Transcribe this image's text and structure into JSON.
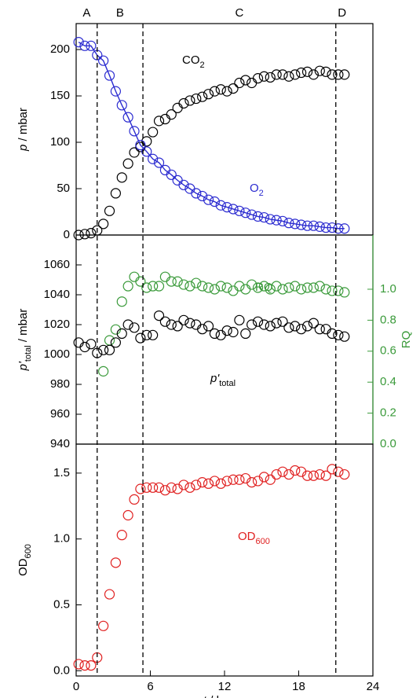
{
  "chart_data": [
    {
      "type": "scatter",
      "phases": [
        "A",
        "B",
        "C",
        "D"
      ],
      "phase_boundaries": [
        1.7,
        5.4,
        21
      ],
      "xlim": [
        0,
        24
      ],
      "ylabel": [
        {
          "text": "p",
          "italic": true
        },
        {
          "text": " / mbar"
        }
      ],
      "ylim": [
        0,
        228
      ],
      "yticks": [
        0,
        50,
        100,
        150,
        200
      ],
      "x": [
        0.2,
        0.7,
        1.2,
        1.7,
        2.2,
        2.7,
        3.2,
        3.7,
        4.2,
        4.7,
        5.2,
        5.7,
        6.2,
        6.7,
        7.2,
        7.7,
        8.2,
        8.7,
        9.2,
        9.7,
        10.2,
        10.7,
        11.2,
        11.7,
        12.2,
        12.7,
        13.2,
        13.7,
        14.2,
        14.7,
        15.2,
        15.7,
        16.2,
        16.7,
        17.2,
        17.7,
        18.2,
        18.7,
        19.2,
        19.7,
        20.2,
        20.7,
        21.2,
        21.7
      ],
      "series": [
        {
          "name": [
            {
              "text": "CO"
            },
            {
              "text": "2",
              "sub": true
            }
          ],
          "color": "#000000",
          "line": false,
          "values": [
            0,
            1,
            2,
            5,
            12,
            26,
            45,
            62,
            77,
            89,
            95,
            101,
            111,
            123,
            125,
            130,
            137,
            142,
            145,
            147,
            149,
            152,
            155,
            157,
            155,
            158,
            164,
            167,
            164,
            169,
            171,
            170,
            173,
            173,
            171,
            173,
            175,
            176,
            173,
            177,
            176,
            173,
            173,
            173
          ]
        },
        {
          "name": [
            {
              "text": "O"
            },
            {
              "text": "2",
              "sub": true
            }
          ],
          "color": "#2b2bd0",
          "line": true,
          "values": [
            208,
            204,
            204,
            194,
            188,
            172,
            155,
            140,
            127,
            112,
            97,
            90,
            82,
            78,
            70,
            65,
            59,
            54,
            50,
            45,
            42,
            38,
            36,
            32,
            30,
            28,
            26,
            24,
            22,
            20,
            19,
            17,
            16,
            15,
            13,
            12,
            11,
            10,
            10,
            9,
            8,
            8,
            7,
            7
          ]
        }
      ]
    },
    {
      "type": "scatter",
      "xlim": [
        0,
        24
      ],
      "ylabel": [
        {
          "text": "p'",
          "italic": true
        },
        {
          "text": "total",
          "sub": true
        },
        {
          "text": " / mbar"
        }
      ],
      "ylim": [
        940,
        1080
      ],
      "yticks": [
        940,
        960,
        980,
        1000,
        1020,
        1040,
        1060
      ],
      "y2label": [
        {
          "text": "RQ"
        }
      ],
      "y2color": "#3a9a3a",
      "y2lim": [
        0,
        1.35
      ],
      "y2ticks": [
        {
          "value": 0,
          "label": "0.0"
        },
        {
          "value": 0.2,
          "label": "0.2"
        },
        {
          "value": 0.4,
          "label": "0.4"
        },
        {
          "value": 0.6,
          "label": "0.6"
        },
        {
          "value": 0.8,
          "label": "0.8"
        },
        {
          "value": 1,
          "label": "1.0"
        }
      ],
      "x": [
        0.2,
        0.7,
        1.2,
        1.7,
        2.2,
        2.7,
        3.2,
        3.7,
        4.2,
        4.7,
        5.2,
        5.7,
        6.2,
        6.7,
        7.2,
        7.7,
        8.2,
        8.7,
        9.2,
        9.7,
        10.2,
        10.7,
        11.2,
        11.7,
        12.2,
        12.7,
        13.2,
        13.7,
        14.2,
        14.7,
        15.2,
        15.7,
        16.2,
        16.7,
        17.2,
        17.7,
        18.2,
        18.7,
        19.2,
        19.7,
        20.2,
        20.7,
        21.2,
        21.7
      ],
      "series": [
        {
          "name": [
            {
              "text": "RQ"
            }
          ],
          "color": "#3a9a3a",
          "axis": "y2",
          "line": false,
          "values": [
            null,
            null,
            null,
            null,
            0.47,
            0.67,
            0.74,
            0.92,
            1.02,
            1.08,
            1.05,
            1.01,
            1.02,
            1.02,
            1.08,
            1.05,
            1.05,
            1.03,
            1.02,
            1.04,
            1.02,
            1.01,
            1.0,
            1.02,
            1.01,
            0.99,
            1.02,
            1.0,
            1.03,
            1.01,
            1.02,
            1.0,
            1.02,
            1.0,
            1.01,
            1.02,
            1.0,
            1.01,
            1.01,
            1.02,
            1.0,
            0.99,
            0.99,
            0.98
          ]
        },
        {
          "name": [
            {
              "text": "p'",
              "italic": true
            },
            {
              "text": "total",
              "sub": true
            }
          ],
          "color": "#000000",
          "line": false,
          "values": [
            1008,
            1005,
            1007,
            1001,
            1003,
            1003,
            1008,
            1014,
            1020,
            1018,
            1011,
            1013,
            1013,
            1026,
            1022,
            1020,
            1019,
            1023,
            1021,
            1020,
            1017,
            1019,
            1014,
            1013,
            1016,
            1015,
            1023,
            1014,
            1020,
            1022,
            1020,
            1019,
            1021,
            1022,
            1018,
            1019,
            1017,
            1019,
            1021,
            1017,
            1017,
            1014,
            1013,
            1012
          ]
        }
      ]
    },
    {
      "type": "scatter",
      "xlim": [
        0,
        24
      ],
      "xticks": [
        0,
        6,
        12,
        18,
        24
      ],
      "xlabel": [
        {
          "text": "t",
          "italic": true
        },
        {
          "text": " / hours"
        }
      ],
      "ylabel": [
        {
          "text": "OD"
        },
        {
          "text": "600",
          "sub": true
        }
      ],
      "ylim": [
        -0.04,
        1.72
      ],
      "yticks": [
        {
          "value": 0,
          "label": "0.0"
        },
        {
          "value": 0.5,
          "label": "0.5"
        },
        {
          "value": 1,
          "label": "1.0"
        },
        {
          "value": 1.5,
          "label": "1.5"
        }
      ],
      "x": [
        0.2,
        0.7,
        1.2,
        1.7,
        2.2,
        2.7,
        3.2,
        3.7,
        4.2,
        4.7,
        5.2,
        5.7,
        6.2,
        6.7,
        7.2,
        7.7,
        8.2,
        8.7,
        9.2,
        9.7,
        10.2,
        10.7,
        11.2,
        11.7,
        12.2,
        12.7,
        13.2,
        13.7,
        14.2,
        14.7,
        15.2,
        15.7,
        16.2,
        16.7,
        17.2,
        17.7,
        18.2,
        18.7,
        19.2,
        19.7,
        20.2,
        20.7,
        21.2,
        21.7
      ],
      "series": [
        {
          "name": [
            {
              "text": "OD"
            },
            {
              "text": "600",
              "sub": true
            }
          ],
          "color": "#e02020",
          "line": false,
          "values": [
            0.05,
            0.04,
            0.04,
            0.1,
            0.34,
            0.58,
            0.82,
            1.03,
            1.18,
            1.3,
            1.38,
            1.39,
            1.39,
            1.39,
            1.37,
            1.39,
            1.38,
            1.41,
            1.39,
            1.41,
            1.43,
            1.42,
            1.44,
            1.42,
            1.44,
            1.45,
            1.45,
            1.46,
            1.43,
            1.44,
            1.47,
            1.45,
            1.49,
            1.51,
            1.49,
            1.52,
            1.51,
            1.48,
            1.48,
            1.49,
            1.48,
            1.53,
            1.51,
            1.49
          ]
        }
      ]
    }
  ]
}
